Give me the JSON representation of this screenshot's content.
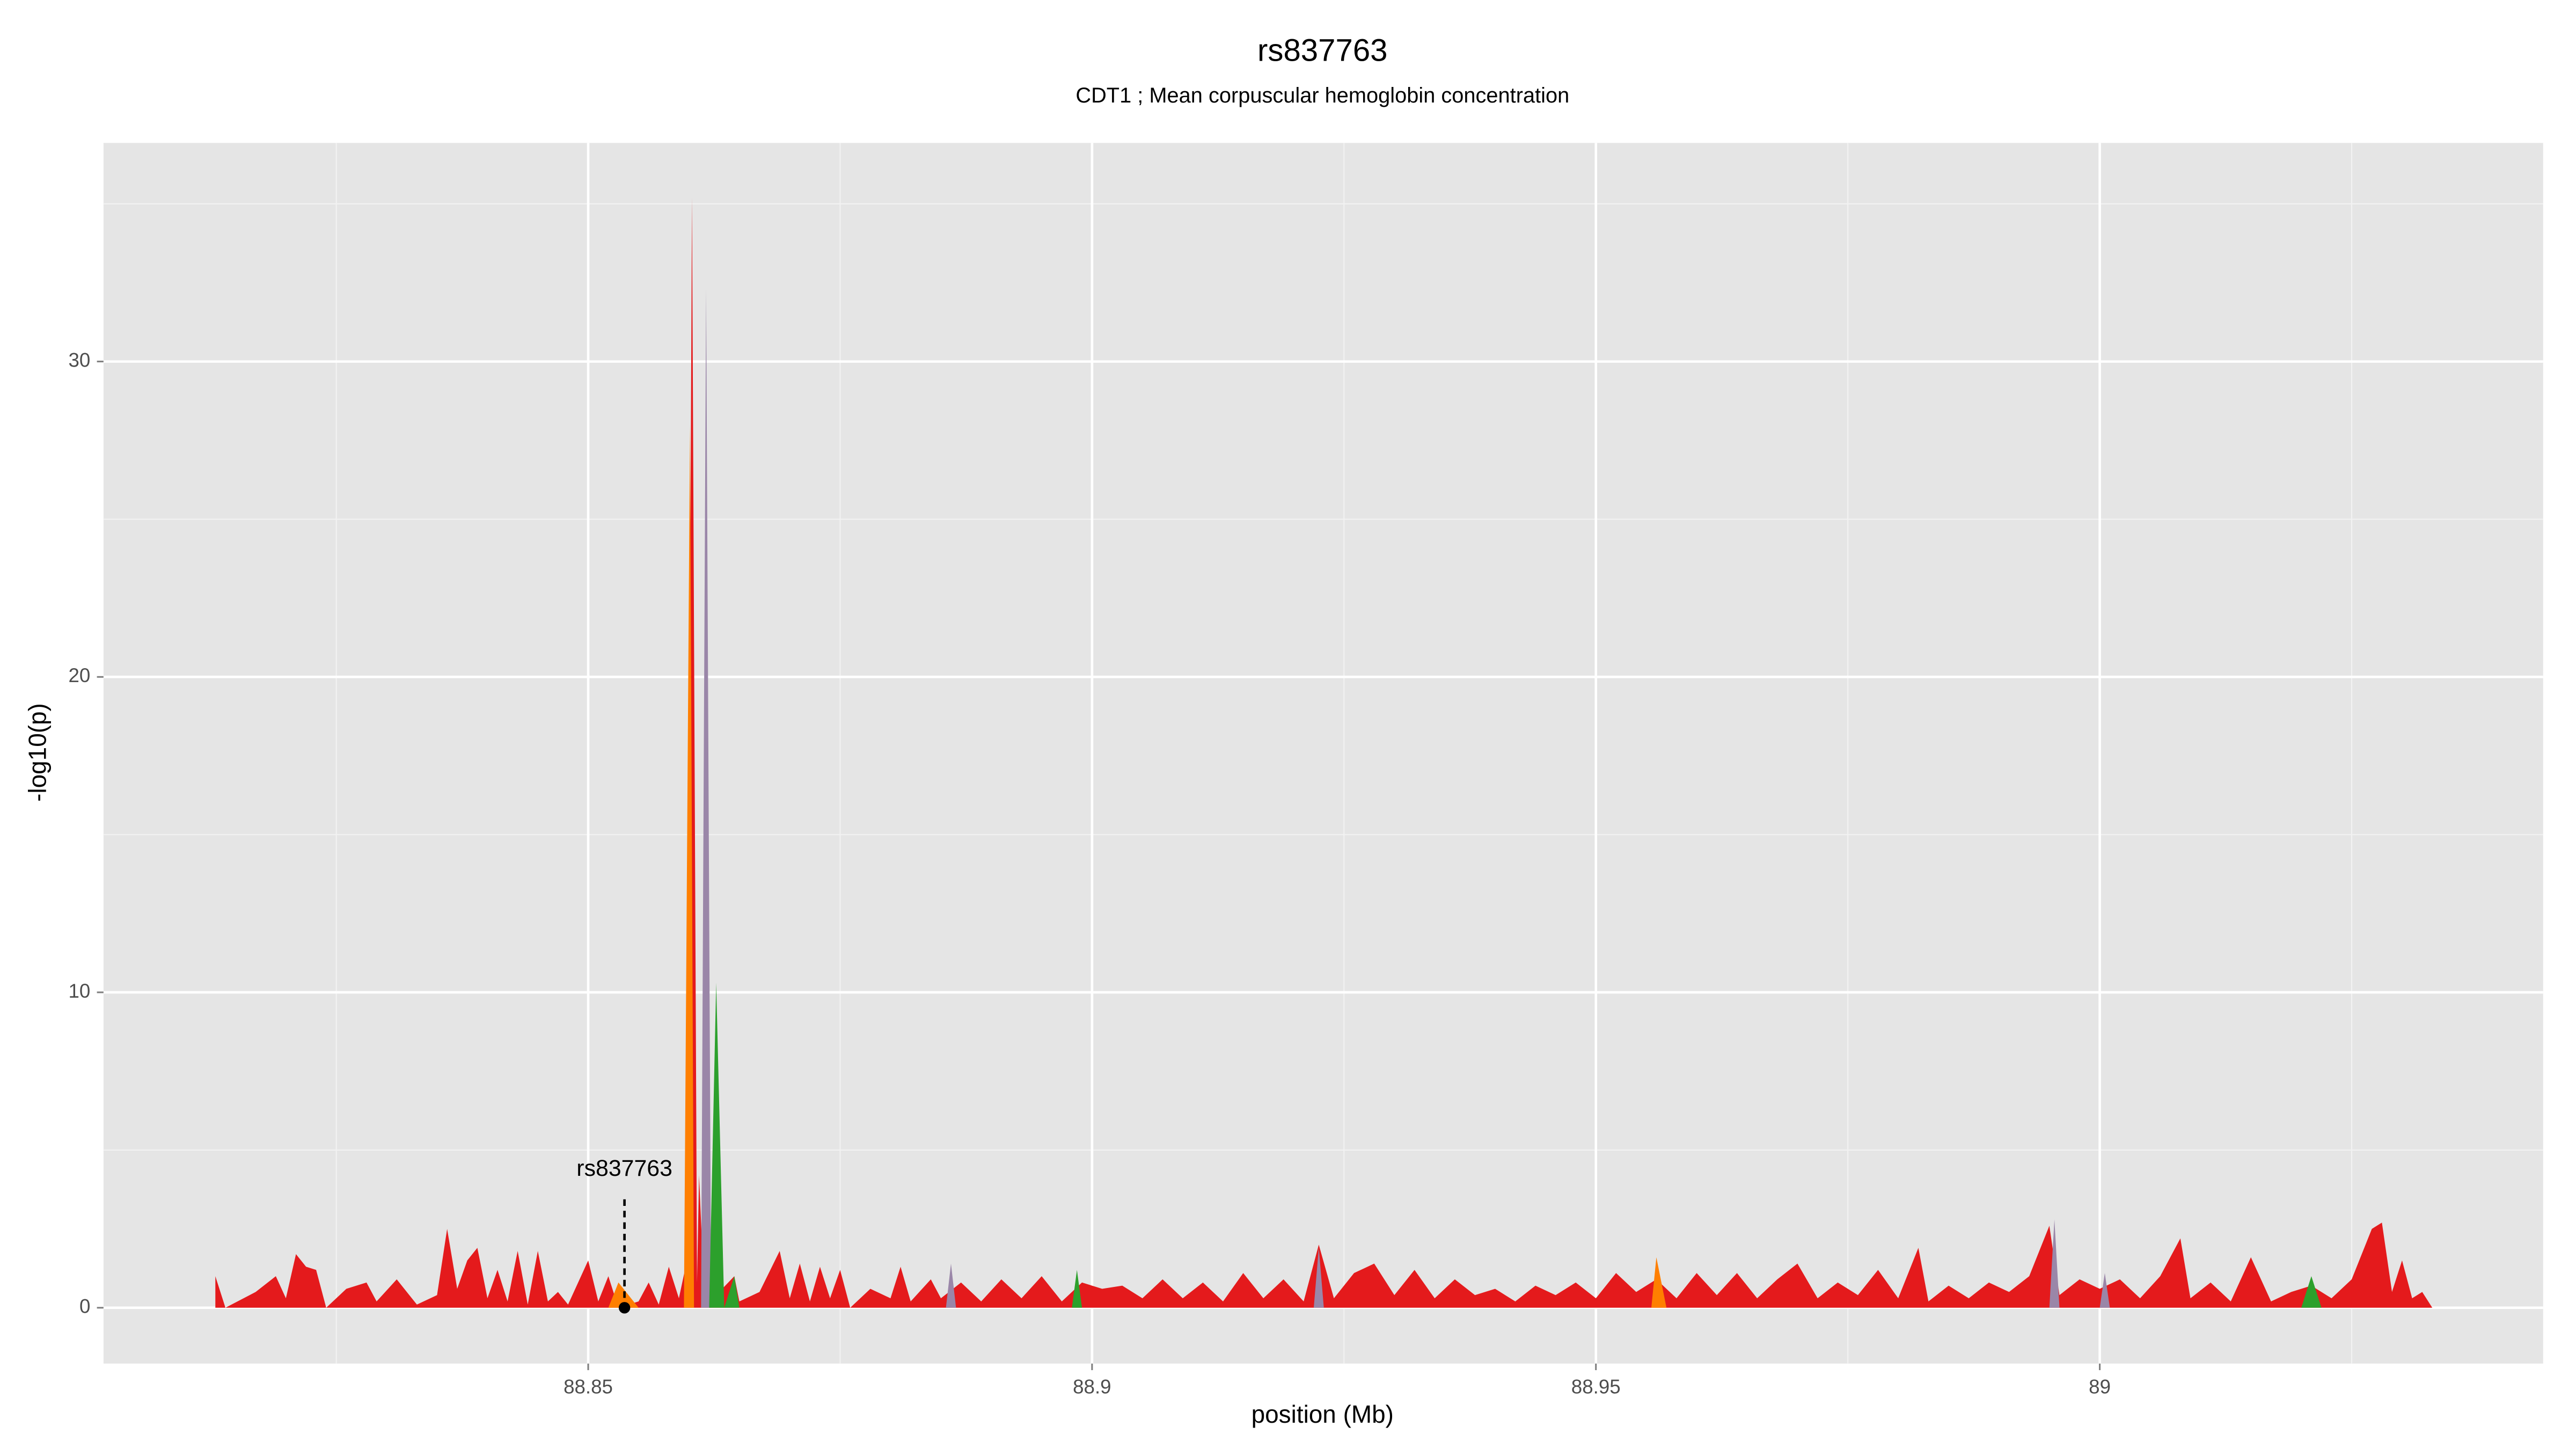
{
  "chart_data": {
    "type": "area",
    "title": "rs837763",
    "subtitle": "CDT1 ; Mean corpuscular hemoglobin concentration",
    "xlabel": "position (Mb)",
    "ylabel": "-log10(p)",
    "xlim": [
      88.8019,
      89.044
    ],
    "xticks": [
      88.85,
      88.9,
      88.95,
      89.0
    ],
    "ylim": [
      -1.77,
      36.93
    ],
    "yticks": [
      0,
      10,
      20,
      30
    ],
    "grid": true,
    "annotation": {
      "text": "rs837763",
      "x": 88.8536,
      "y": 0
    },
    "series": [
      {
        "color": "#e41a1c",
        "x": [
          88.813,
          88.814,
          88.817,
          88.819,
          88.82,
          88.821,
          88.822,
          88.823,
          88.824,
          88.826,
          88.828,
          88.829,
          88.831,
          88.833,
          88.835,
          88.836,
          88.837,
          88.838,
          88.839,
          88.84,
          88.841,
          88.842,
          88.843,
          88.844,
          88.845,
          88.846,
          88.847,
          88.848,
          88.85,
          88.851,
          88.852,
          88.853,
          88.855,
          88.856,
          88.857,
          88.858,
          88.859,
          88.8598,
          88.8603,
          88.8608,
          88.861,
          88.8615,
          88.862,
          88.863,
          88.8645,
          88.865,
          88.867,
          88.869,
          88.87,
          88.871,
          88.872,
          88.873,
          88.874,
          88.875,
          88.876,
          88.878,
          88.88,
          88.881,
          88.882,
          88.884,
          88.885,
          88.887,
          88.889,
          88.891,
          88.893,
          88.895,
          88.897,
          88.899,
          88.901,
          88.903,
          88.905,
          88.907,
          88.909,
          88.911,
          88.913,
          88.915,
          88.917,
          88.919,
          88.921,
          88.9225,
          88.924,
          88.926,
          88.928,
          88.93,
          88.932,
          88.934,
          88.936,
          88.938,
          88.94,
          88.942,
          88.944,
          88.946,
          88.948,
          88.95,
          88.952,
          88.954,
          88.956,
          88.958,
          88.96,
          88.962,
          88.964,
          88.966,
          88.968,
          88.97,
          88.972,
          88.974,
          88.976,
          88.978,
          88.98,
          88.982,
          88.983,
          88.985,
          88.987,
          88.989,
          88.991,
          88.993,
          88.995,
          88.996,
          88.998,
          89.0,
          89.002,
          89.004,
          89.006,
          89.008,
          89.009,
          89.011,
          89.013,
          89.015,
          89.017,
          89.019,
          89.021,
          89.023,
          89.025,
          89.027,
          89.028,
          89.029,
          89.03,
          89.031,
          89.032,
          89.033
        ],
        "values": [
          1.0,
          0,
          0.5,
          1.0,
          0.3,
          1.7,
          1.3,
          1.2,
          0,
          0.6,
          0.8,
          0.2,
          0.9,
          0.1,
          0.4,
          2.5,
          0.6,
          1.5,
          1.9,
          0.3,
          1.2,
          0.2,
          1.8,
          0.1,
          1.8,
          0.2,
          0.5,
          0.1,
          1.5,
          0.2,
          1.0,
          0,
          0.2,
          0.8,
          0.1,
          1.3,
          0.3,
          1.5,
          35.2,
          0.8,
          4.2,
          0.5,
          2.0,
          0.5,
          1.0,
          0.2,
          0.5,
          1.8,
          0.3,
          1.4,
          0.2,
          1.3,
          0.3,
          1.2,
          0,
          0.6,
          0.3,
          1.3,
          0.2,
          0.9,
          0.3,
          0.8,
          0.2,
          0.9,
          0.3,
          1.0,
          0.2,
          0.8,
          0.6,
          0.7,
          0.3,
          0.9,
          0.3,
          0.8,
          0.2,
          1.1,
          0.3,
          0.9,
          0.2,
          2.0,
          0.3,
          1.1,
          1.4,
          0.4,
          1.2,
          0.3,
          0.9,
          0.4,
          0.6,
          0.2,
          0.7,
          0.4,
          0.8,
          0.3,
          1.1,
          0.5,
          0.9,
          0.3,
          1.1,
          0.4,
          1.1,
          0.3,
          0.9,
          1.4,
          0.3,
          0.8,
          0.4,
          1.2,
          0.3,
          1.9,
          0.2,
          0.7,
          0.3,
          0.8,
          0.5,
          1.0,
          2.6,
          0.4,
          0.9,
          0.6,
          0.9,
          0.3,
          1.0,
          2.2,
          0.3,
          0.8,
          0.2,
          1.6,
          0.2,
          0.5,
          0.7,
          0.3,
          0.9,
          2.5,
          2.7,
          0.5,
          1.5,
          0.3,
          0.5,
          0
        ]
      },
      {
        "color": "#9a86a8",
        "x": [
          88.8612,
          88.8617,
          88.8622,
          null,
          88.8855,
          88.886,
          88.8865,
          null,
          88.922,
          88.9225,
          88.923,
          null,
          88.995,
          88.9955,
          88.996,
          null,
          89.0,
          89.0005,
          89.001
        ],
        "values": [
          0,
          32.3,
          0,
          null,
          0,
          1.4,
          0,
          null,
          0,
          1.9,
          0,
          null,
          0,
          2.8,
          0,
          null,
          0,
          1.1,
          0
        ]
      },
      {
        "color": "#ff7f00",
        "x": [
          88.8595,
          88.8601,
          88.8605,
          null,
          88.852,
          88.853,
          88.855,
          null,
          88.9555,
          88.956,
          88.957
        ],
        "values": [
          0,
          28,
          0,
          null,
          0,
          0.8,
          0,
          null,
          0,
          1.6,
          0
        ]
      },
      {
        "color": "#2ca02c",
        "x": [
          88.862,
          88.8627,
          88.8635,
          88.8645,
          88.865,
          null,
          88.898,
          88.8985,
          88.899,
          null,
          89.02,
          89.021,
          89.022
        ],
        "values": [
          0,
          10.3,
          0,
          1.0,
          0,
          null,
          0,
          1.2,
          0,
          null,
          0,
          1.0,
          0
        ]
      }
    ]
  }
}
